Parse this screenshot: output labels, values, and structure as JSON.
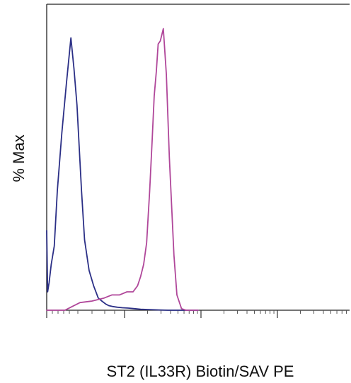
{
  "chart_data": {
    "type": "line",
    "title": "",
    "xlabel": "ST2 (IL33R) Biotin/SAV PE",
    "ylabel": "% Max",
    "xlim": [
      0,
      1000
    ],
    "ylim": [
      0,
      100
    ],
    "x_scale": "logicle",
    "grid": false,
    "legend": "none",
    "series": [
      {
        "color": "#2b2f86",
        "x": [
          0,
          3,
          8,
          15,
          25,
          35,
          50,
          65,
          80,
          90,
          100,
          115,
          125,
          140,
          155,
          170,
          182,
          195,
          205,
          218,
          232,
          250,
          270,
          290,
          310,
          340,
          370,
          400,
          500
        ],
        "y": [
          26,
          6,
          9,
          15,
          21,
          39,
          58,
          74,
          89,
          79,
          67,
          39,
          23,
          13,
          8,
          4,
          3,
          2,
          1.5,
          1.2,
          1,
          0.8,
          0.7,
          0.5,
          0.3,
          0.2,
          0.1,
          0,
          0
        ]
      },
      {
        "color": "#b0479a",
        "x": [
          0,
          60,
          80,
          110,
          150,
          190,
          215,
          240,
          265,
          285,
          300,
          310,
          320,
          330,
          340,
          348,
          355,
          362,
          368,
          375,
          385,
          395,
          405,
          420,
          430,
          445,
          460,
          500
        ],
        "y": [
          0,
          0,
          1,
          2.5,
          3,
          4,
          5,
          5,
          6,
          6,
          8,
          11,
          15,
          22,
          39,
          55,
          70,
          78,
          87,
          88,
          92,
          77,
          50,
          18,
          5,
          0.5,
          0,
          0
        ]
      }
    ],
    "x_ticks": [
      0,
      10,
      100,
      1000,
      10000
    ],
    "x_tick_labels": [
      "",
      "",
      "",
      "",
      ""
    ]
  }
}
